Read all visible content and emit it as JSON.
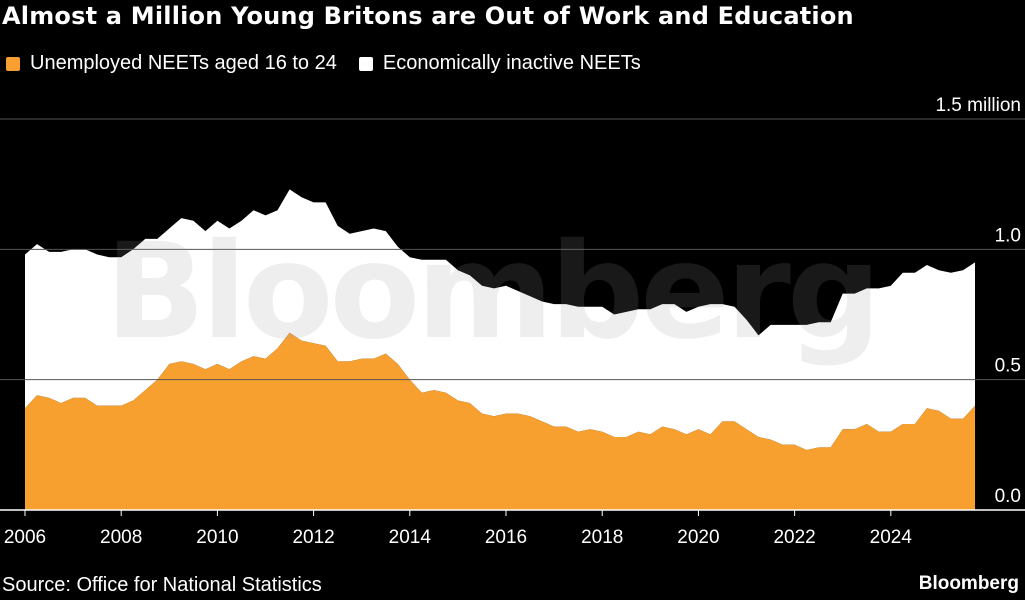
{
  "title": "Almost a Million Young Britons are Out of Work and Education",
  "legend": [
    {
      "label": "Unemployed NEETs aged 16 to 24",
      "color": "#f7a030"
    },
    {
      "label": "Economically inactive NEETs",
      "color": "#ffffff"
    }
  ],
  "source": "Source: Office for National Statistics",
  "brand": "Bloomberg",
  "watermark": "Bloomberg",
  "colors": {
    "background": "#000000",
    "unemployed": "#f7a030",
    "inactive": "#ffffff",
    "grid": "#555555"
  },
  "chart_data": {
    "type": "area",
    "stacked": true,
    "x_unit": "year",
    "x": [
      2006.0,
      2006.25,
      2006.5,
      2006.75,
      2007.0,
      2007.25,
      2007.5,
      2007.75,
      2008.0,
      2008.25,
      2008.5,
      2008.75,
      2009.0,
      2009.25,
      2009.5,
      2009.75,
      2010.0,
      2010.25,
      2010.5,
      2010.75,
      2011.0,
      2011.25,
      2011.5,
      2011.75,
      2012.0,
      2012.25,
      2012.5,
      2012.75,
      2013.0,
      2013.25,
      2013.5,
      2013.75,
      2014.0,
      2014.25,
      2014.5,
      2014.75,
      2015.0,
      2015.25,
      2015.5,
      2015.75,
      2016.0,
      2016.25,
      2016.5,
      2016.75,
      2017.0,
      2017.25,
      2017.5,
      2017.75,
      2018.0,
      2018.25,
      2018.5,
      2018.75,
      2019.0,
      2019.25,
      2019.5,
      2019.75,
      2020.0,
      2020.25,
      2020.5,
      2020.75,
      2021.0,
      2021.25,
      2021.5,
      2021.75,
      2022.0,
      2022.25,
      2022.5,
      2022.75,
      2023.0,
      2023.25,
      2023.5,
      2023.75,
      2024.0,
      2024.25,
      2024.5,
      2024.75,
      2025.0,
      2025.25,
      2025.5,
      2025.75
    ],
    "series": [
      {
        "name": "Unemployed NEETs aged 16 to 24",
        "values": [
          0.39,
          0.44,
          0.43,
          0.41,
          0.43,
          0.43,
          0.4,
          0.4,
          0.4,
          0.42,
          0.46,
          0.5,
          0.56,
          0.57,
          0.56,
          0.54,
          0.56,
          0.54,
          0.57,
          0.59,
          0.58,
          0.62,
          0.68,
          0.65,
          0.64,
          0.63,
          0.57,
          0.57,
          0.58,
          0.58,
          0.6,
          0.56,
          0.5,
          0.45,
          0.46,
          0.45,
          0.42,
          0.41,
          0.37,
          0.36,
          0.37,
          0.37,
          0.36,
          0.34,
          0.32,
          0.32,
          0.3,
          0.31,
          0.3,
          0.28,
          0.28,
          0.3,
          0.29,
          0.32,
          0.31,
          0.29,
          0.31,
          0.29,
          0.34,
          0.34,
          0.31,
          0.28,
          0.27,
          0.25,
          0.25,
          0.23,
          0.24,
          0.24,
          0.31,
          0.31,
          0.33,
          0.3,
          0.3,
          0.33,
          0.33,
          0.39,
          0.38,
          0.35,
          0.35,
          0.4
        ]
      },
      {
        "name": "Economically inactive NEETs",
        "values": [
          0.59,
          0.58,
          0.56,
          0.58,
          0.57,
          0.57,
          0.58,
          0.57,
          0.57,
          0.58,
          0.58,
          0.54,
          0.52,
          0.55,
          0.55,
          0.53,
          0.55,
          0.54,
          0.54,
          0.56,
          0.55,
          0.53,
          0.55,
          0.55,
          0.54,
          0.55,
          0.52,
          0.49,
          0.49,
          0.5,
          0.47,
          0.45,
          0.47,
          0.51,
          0.5,
          0.51,
          0.5,
          0.49,
          0.49,
          0.49,
          0.49,
          0.47,
          0.46,
          0.46,
          0.47,
          0.47,
          0.48,
          0.47,
          0.48,
          0.47,
          0.48,
          0.47,
          0.48,
          0.47,
          0.48,
          0.47,
          0.47,
          0.5,
          0.45,
          0.44,
          0.42,
          0.39,
          0.44,
          0.46,
          0.46,
          0.48,
          0.48,
          0.48,
          0.52,
          0.52,
          0.52,
          0.55,
          0.56,
          0.58,
          0.58,
          0.55,
          0.54,
          0.56,
          0.57,
          0.55
        ]
      }
    ],
    "y_ticks": [
      0.0,
      0.5,
      1.0,
      1.5
    ],
    "y_tick_labels": [
      "0.0",
      "0.5",
      "1.0",
      "1.5 million"
    ],
    "x_ticks": [
      2006,
      2008,
      2010,
      2012,
      2014,
      2016,
      2018,
      2020,
      2022,
      2024
    ],
    "x_tick_labels": [
      "2006",
      "2008",
      "2010",
      "2012",
      "2014",
      "2016",
      "2018",
      "2020",
      "2022",
      "2024"
    ],
    "ylim": [
      0,
      1.5
    ],
    "xlim": [
      2006,
      2025.75
    ],
    "grid": true,
    "legend_position": "top-left"
  }
}
